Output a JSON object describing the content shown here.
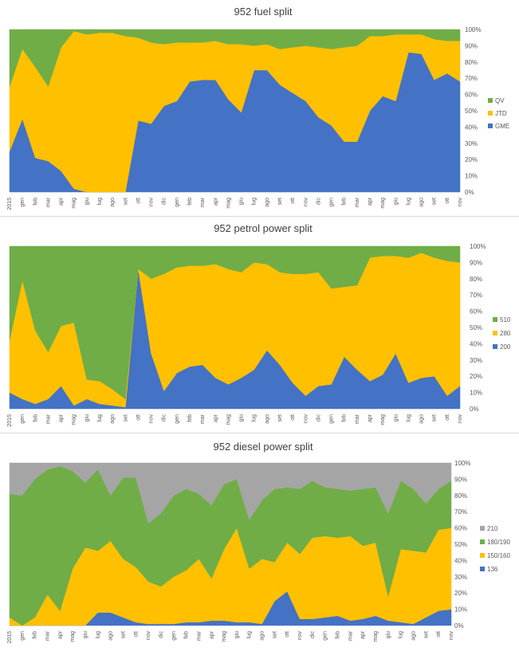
{
  "colors": {
    "GME": "#4472C4",
    "JTD": "#FFC000",
    "QV": "#70AD47",
    "200": "#4472C4",
    "280": "#FFC000",
    "510": "#70AD47",
    "136": "#4472C4",
    "150/160": "#FFC000",
    "180/190": "#70AD47",
    "210": "#A5A5A5"
  },
  "x_labels": [
    "2015",
    "gen",
    "feb",
    "mar",
    "apr",
    "mag",
    "giu",
    "lug",
    "ago",
    "set",
    "ott",
    "nov",
    "dic",
    "gen",
    "feb",
    "mar",
    "apr",
    "mag",
    "giu",
    "lug",
    "ago",
    "set",
    "ott",
    "nov",
    "dic",
    "gen",
    "feb",
    "mar",
    "apr",
    "mag",
    "giu",
    "lug",
    "ago",
    "set",
    "ott",
    "nov"
  ],
  "y_ticks": [
    "0%",
    "10%",
    "20%",
    "30%",
    "40%",
    "50%",
    "60%",
    "70%",
    "80%",
    "90%",
    "100%"
  ],
  "chart_data": [
    {
      "type": "area",
      "stacked": "percent",
      "title": "952 fuel split",
      "ylim": [
        0,
        100
      ],
      "legend_position": "right",
      "legend": [
        "QV",
        "JTD",
        "GME"
      ],
      "series": [
        {
          "name": "GME",
          "values": [
            25,
            45,
            21,
            19,
            13,
            2,
            0,
            0,
            0,
            0,
            44,
            42,
            53,
            56,
            68,
            69,
            69,
            57,
            49,
            75,
            75,
            66,
            61,
            56,
            46,
            41,
            31,
            31,
            50,
            59,
            56,
            86,
            85,
            69,
            73,
            68
          ]
        },
        {
          "name": "JTD",
          "values": [
            40,
            43,
            56,
            46,
            76,
            97,
            97,
            98,
            98,
            96,
            51,
            50,
            38,
            36,
            24,
            23,
            24,
            34,
            42,
            15,
            16,
            22,
            28,
            34,
            43,
            47,
            58,
            59,
            46,
            37,
            41,
            11,
            12,
            25,
            20,
            25
          ]
        },
        {
          "name": "QV",
          "values": [
            35,
            12,
            23,
            35,
            11,
            1,
            3,
            2,
            2,
            4,
            5,
            8,
            9,
            8,
            8,
            8,
            7,
            9,
            9,
            10,
            9,
            12,
            11,
            10,
            11,
            12,
            11,
            10,
            4,
            4,
            3,
            3,
            3,
            6,
            7,
            7
          ]
        }
      ]
    },
    {
      "type": "area",
      "stacked": "percent",
      "title": "952 petrol power split",
      "ylim": [
        0,
        100
      ],
      "legend_position": "right",
      "legend": [
        "510",
        "280",
        "200"
      ],
      "series": [
        {
          "name": "200",
          "values": [
            10,
            6,
            3,
            6,
            14,
            2,
            6,
            3,
            2,
            1,
            86,
            34,
            11,
            22,
            26,
            27,
            19,
            15,
            19,
            24,
            36,
            27,
            16,
            8,
            14,
            15,
            32,
            24,
            17,
            21,
            34,
            16,
            19,
            20,
            8,
            14
          ]
        },
        {
          "name": "280",
          "values": [
            32,
            73,
            45,
            29,
            37,
            51,
            12,
            14,
            10,
            5,
            0,
            46,
            72,
            65,
            62,
            61,
            70,
            71,
            65,
            66,
            53,
            57,
            67,
            75,
            70,
            59,
            43,
            52,
            76,
            73,
            60,
            77,
            77,
            73,
            83,
            76
          ]
        },
        {
          "name": "510",
          "values": [
            58,
            21,
            52,
            65,
            49,
            47,
            82,
            83,
            88,
            94,
            14,
            20,
            17,
            13,
            12,
            12,
            11,
            14,
            16,
            10,
            11,
            16,
            17,
            17,
            16,
            26,
            25,
            24,
            7,
            6,
            6,
            7,
            4,
            7,
            9,
            10
          ]
        }
      ]
    },
    {
      "type": "area",
      "stacked": "percent",
      "title": "952 diesel power split",
      "ylim": [
        0,
        100
      ],
      "legend_position": "right",
      "legend": [
        "210",
        "180/190",
        "150/160",
        "136"
      ],
      "series": [
        {
          "name": "136",
          "values": [
            0,
            0,
            0,
            0,
            0,
            0,
            0,
            8,
            8,
            5,
            2,
            1,
            1,
            1,
            2,
            2,
            3,
            3,
            2,
            2,
            1,
            15,
            21,
            4,
            4,
            5,
            6,
            3,
            4,
            6,
            3,
            2,
            1,
            5,
            9,
            10
          ]
        },
        {
          "name": "150/160",
          "values": [
            5,
            0,
            5,
            19,
            9,
            35,
            48,
            38,
            44,
            36,
            34,
            26,
            23,
            29,
            32,
            39,
            26,
            44,
            58,
            33,
            40,
            24,
            30,
            40,
            50,
            50,
            48,
            52,
            45,
            45,
            15,
            45,
            45,
            40,
            50,
            50
          ]
        },
        {
          "name": "180/190",
          "values": [
            76,
            80,
            85,
            77,
            89,
            60,
            40,
            50,
            28,
            50,
            55,
            36,
            45,
            50,
            50,
            40,
            45,
            40,
            30,
            30,
            36,
            45,
            34,
            40,
            35,
            30,
            30,
            28,
            35,
            34,
            51,
            42,
            38,
            30,
            25,
            29
          ]
        },
        {
          "name": "210",
          "values": [
            19,
            20,
            10,
            4,
            2,
            5,
            12,
            4,
            20,
            9,
            9,
            37,
            31,
            20,
            16,
            19,
            26,
            13,
            10,
            35,
            23,
            16,
            15,
            16,
            11,
            15,
            16,
            17,
            16,
            15,
            31,
            11,
            16,
            25,
            16,
            11
          ]
        }
      ]
    }
  ]
}
